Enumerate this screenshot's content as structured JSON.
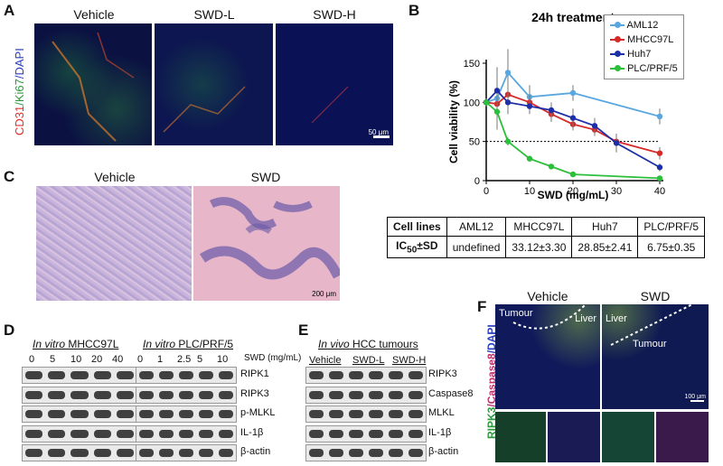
{
  "panelA": {
    "label": "A",
    "titles": [
      "Vehicle",
      "SWD-L",
      "SWD-H"
    ],
    "stain_red": "CD31",
    "stain_green": "/Ki67",
    "stain_blue": "/DAPI",
    "scale": "50 μm"
  },
  "panelB": {
    "label": "B",
    "title": "24h treatment",
    "legend": [
      "AML12",
      "MHCC97L",
      "Huh7",
      "PLC/PRF/5"
    ],
    "table": {
      "header": [
        "Cell lines",
        "AML12",
        "MHCC97L",
        "Huh7",
        "PLC/PRF/5"
      ],
      "row_label": "IC",
      "row_label_sub": "50",
      "row_label_suffix": "±SD",
      "row": [
        "undefined",
        "33.12±3.30",
        "28.85±2.41",
        "6.75±0.35"
      ]
    }
  },
  "chart_data": {
    "type": "line",
    "title": "24h treatment",
    "xlabel": "SWD (mg/mL)",
    "ylabel": "Cell viability (%)",
    "xlim": [
      0,
      40
    ],
    "ylim": [
      0,
      150
    ],
    "xticks": [
      0,
      10,
      20,
      30,
      40
    ],
    "yticks": [
      0,
      50,
      100,
      150
    ],
    "reference_line_y": 50,
    "series": [
      {
        "name": "AML12",
        "color": "#5aa7e0",
        "x": [
          0,
          2.5,
          5,
          10,
          20,
          40
        ],
        "y": [
          100,
          105,
          138,
          107,
          112,
          82
        ],
        "err": [
          5,
          40,
          30,
          15,
          10,
          10
        ]
      },
      {
        "name": "MHCC97L",
        "color": "#d62a2a",
        "x": [
          0,
          2.5,
          5,
          10,
          15,
          20,
          25,
          30,
          40
        ],
        "y": [
          100,
          98,
          110,
          100,
          85,
          72,
          65,
          50,
          35
        ],
        "err": [
          4,
          10,
          15,
          10,
          10,
          8,
          8,
          10,
          8
        ]
      },
      {
        "name": "Huh7",
        "color": "#1d2fa8",
        "x": [
          0,
          2.5,
          5,
          10,
          15,
          20,
          25,
          30,
          40
        ],
        "y": [
          100,
          115,
          100,
          95,
          90,
          80,
          70,
          48,
          17
        ],
        "err": [
          4,
          25,
          15,
          10,
          10,
          12,
          10,
          12,
          5
        ]
      },
      {
        "name": "PLC/PRF/5",
        "color": "#2bbf3a",
        "x": [
          0,
          2.5,
          5,
          10,
          15,
          20,
          40
        ],
        "y": [
          100,
          88,
          50,
          28,
          18,
          8,
          3
        ],
        "err": [
          3,
          5,
          5,
          3,
          3,
          2,
          2
        ]
      }
    ]
  },
  "panelC": {
    "label": "C",
    "titles": [
      "Vehicle",
      "SWD"
    ],
    "scale": "200 μm"
  },
  "panelD": {
    "label": "D",
    "title1_italic": "In vitro",
    "title1_rest": " MHCC97L",
    "title2_italic": "In vitro",
    "title2_rest": " PLC/PRF/5",
    "unit": "SWD (mg/mL)",
    "conc1": [
      "0",
      "5",
      "10",
      "20",
      "40"
    ],
    "conc2": [
      "0",
      "1",
      "2.5",
      "5",
      "10"
    ],
    "proteins": [
      "RIPK1",
      "RIPK3",
      "p-MLKL",
      "IL-1β",
      "β-actin"
    ]
  },
  "panelE": {
    "label": "E",
    "title_italic": "In vivo",
    "title_rest": " HCC tumours",
    "groups": [
      "Vehicle",
      "SWD-L",
      "SWD-H"
    ],
    "proteins": [
      "RIPK3",
      "Caspase8",
      "MLKL",
      "IL-1β",
      "β-actin"
    ]
  },
  "panelF": {
    "label": "F",
    "titles": [
      "Vehicle",
      "SWD"
    ],
    "left_tags": [
      "Tumour",
      "Liver"
    ],
    "right_tags": [
      "Liver",
      "Tumour"
    ],
    "stain_green": "RIPK3",
    "stain_red": "/Caspase8",
    "stain_blue": "/DAPI",
    "scale": "100 μm"
  }
}
